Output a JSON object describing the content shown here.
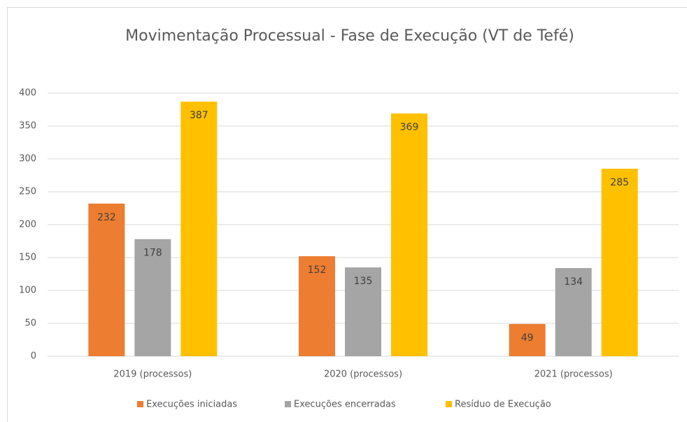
{
  "chart_data": {
    "type": "bar",
    "title": "Movimentação Processual - Fase de Execução (VT de Tefé)",
    "categories": [
      "2019 (processos)",
      "2020 (processos)",
      "2021 (processos)"
    ],
    "series": [
      {
        "name": "Execuções iniciadas",
        "color": "#ed7d31",
        "values": [
          232,
          152,
          49
        ]
      },
      {
        "name": "Execuções encerradas",
        "color": "#a5a5a5",
        "values": [
          178,
          135,
          134
        ]
      },
      {
        "name": "Resíduo de Execução",
        "color": "#ffc000",
        "values": [
          387,
          369,
          285
        ]
      }
    ],
    "ylim": [
      0,
      400
    ],
    "yticks": [
      0,
      50,
      100,
      150,
      200,
      250,
      300,
      350,
      400
    ],
    "grid": true,
    "legend": "bottom"
  }
}
